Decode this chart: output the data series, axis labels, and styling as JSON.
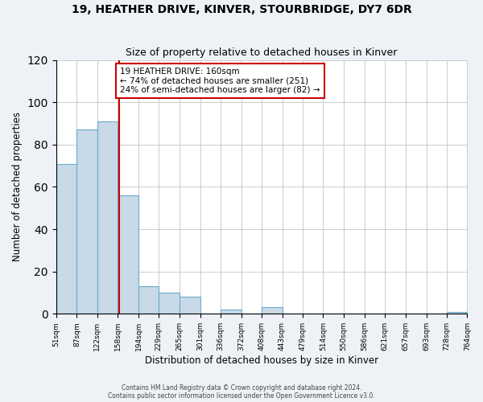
{
  "title": "19, HEATHER DRIVE, KINVER, STOURBRIDGE, DY7 6DR",
  "subtitle": "Size of property relative to detached houses in Kinver",
  "xlabel": "Distribution of detached houses by size in Kinver",
  "ylabel": "Number of detached properties",
  "bar_edges": [
    51,
    87,
    122,
    158,
    194,
    229,
    265,
    301,
    336,
    372,
    408,
    443,
    479,
    514,
    550,
    586,
    621,
    657,
    693,
    728,
    764
  ],
  "bar_heights": [
    71,
    87,
    91,
    56,
    13,
    10,
    8,
    0,
    2,
    0,
    3,
    0,
    0,
    0,
    0,
    0,
    0,
    0,
    0,
    1
  ],
  "bar_color": "#c8d9e8",
  "bar_edge_color": "#6aaacb",
  "reference_line_x": 160,
  "reference_line_color": "#cc0000",
  "annotation_box_text": "19 HEATHER DRIVE: 160sqm\n← 74% of detached houses are smaller (251)\n24% of semi-detached houses are larger (82) →",
  "annotation_box_facecolor": "white",
  "annotation_box_edgecolor": "#cc0000",
  "ylim": [
    0,
    120
  ],
  "yticks": [
    0,
    20,
    40,
    60,
    80,
    100,
    120
  ],
  "tick_labels": [
    "51sqm",
    "87sqm",
    "122sqm",
    "158sqm",
    "194sqm",
    "229sqm",
    "265sqm",
    "301sqm",
    "336sqm",
    "372sqm",
    "408sqm",
    "443sqm",
    "479sqm",
    "514sqm",
    "550sqm",
    "586sqm",
    "621sqm",
    "657sqm",
    "693sqm",
    "728sqm",
    "764sqm"
  ],
  "footer1": "Contains HM Land Registry data © Crown copyright and database right 2024.",
  "footer2": "Contains public sector information licensed under the Open Government Licence v3.0.",
  "background_color": "#eef2f7",
  "plot_background_color": "white",
  "grid_color": "#cccccc"
}
